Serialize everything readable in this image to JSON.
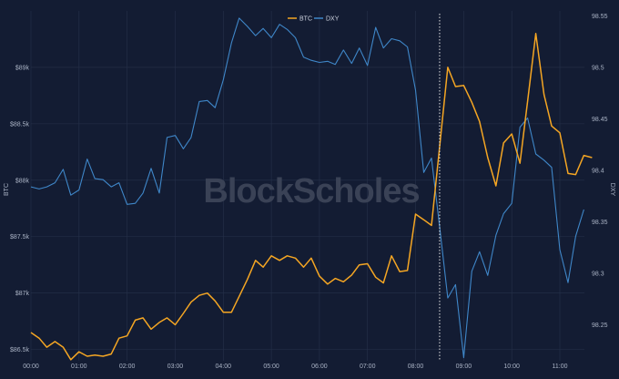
{
  "chart_data": {
    "type": "line",
    "watermark": "BlockScholes",
    "colors": {
      "background": "#131c33",
      "grid": "#26314a",
      "btc": "#f5a623",
      "dxy": "#3f87c9",
      "marker": "#e6e6e6"
    },
    "legend": {
      "position": "top-center",
      "items": [
        "BTC",
        "DXY"
      ]
    },
    "x_axis": {
      "ticks": [
        "00:00",
        "01:00",
        "02:00",
        "03:00",
        "04:00",
        "05:00",
        "06:00",
        "07:00",
        "08:00",
        "09:00",
        "10:00",
        "11:00"
      ],
      "range_hours": [
        0,
        11.5
      ]
    },
    "y_left": {
      "label": "BTC",
      "range": [
        86400,
        89500
      ],
      "ticks": [
        86500,
        87000,
        87500,
        88000,
        88500,
        89000
      ],
      "tick_labels": [
        "$86.5k",
        "$87k",
        "$87.5k",
        "$88k",
        "$88.5k",
        "$89k"
      ]
    },
    "y_right": {
      "label": "DXY",
      "range": [
        98.215,
        98.555
      ],
      "ticks": [
        98.25,
        98.3,
        98.35,
        98.4,
        98.45,
        98.5,
        98.55
      ],
      "tick_labels": [
        "98.25",
        "98.3",
        "98.35",
        "98.4",
        "98.45",
        "98.5",
        "98.55"
      ]
    },
    "event_marker_hour": 8.5,
    "series": [
      {
        "name": "BTC",
        "axis": "left",
        "points": [
          [
            0.0,
            86650
          ],
          [
            0.17,
            86600
          ],
          [
            0.33,
            86520
          ],
          [
            0.5,
            86570
          ],
          [
            0.67,
            86520
          ],
          [
            0.83,
            86410
          ],
          [
            1.0,
            86480
          ],
          [
            1.17,
            86440
          ],
          [
            1.33,
            86450
          ],
          [
            1.5,
            86440
          ],
          [
            1.67,
            86460
          ],
          [
            1.83,
            86600
          ],
          [
            2.0,
            86620
          ],
          [
            2.17,
            86760
          ],
          [
            2.33,
            86780
          ],
          [
            2.5,
            86680
          ],
          [
            2.67,
            86740
          ],
          [
            2.83,
            86780
          ],
          [
            3.0,
            86720
          ],
          [
            3.17,
            86820
          ],
          [
            3.33,
            86920
          ],
          [
            3.5,
            86980
          ],
          [
            3.67,
            87000
          ],
          [
            3.83,
            86930
          ],
          [
            4.0,
            86830
          ],
          [
            4.17,
            86830
          ],
          [
            4.33,
            86970
          ],
          [
            4.5,
            87120
          ],
          [
            4.67,
            87290
          ],
          [
            4.83,
            87230
          ],
          [
            5.0,
            87330
          ],
          [
            5.17,
            87290
          ],
          [
            5.33,
            87330
          ],
          [
            5.5,
            87310
          ],
          [
            5.67,
            87230
          ],
          [
            5.83,
            87310
          ],
          [
            6.0,
            87150
          ],
          [
            6.17,
            87080
          ],
          [
            6.33,
            87130
          ],
          [
            6.5,
            87100
          ],
          [
            6.67,
            87160
          ],
          [
            6.83,
            87250
          ],
          [
            7.0,
            87260
          ],
          [
            7.17,
            87140
          ],
          [
            7.33,
            87090
          ],
          [
            7.5,
            87330
          ],
          [
            7.67,
            87190
          ],
          [
            7.83,
            87200
          ],
          [
            8.0,
            87700
          ],
          [
            8.17,
            87650
          ],
          [
            8.33,
            87600
          ],
          [
            8.5,
            88300
          ],
          [
            8.67,
            89000
          ],
          [
            8.83,
            88830
          ],
          [
            9.0,
            88840
          ],
          [
            9.17,
            88690
          ],
          [
            9.33,
            88520
          ],
          [
            9.5,
            88200
          ],
          [
            9.67,
            87950
          ],
          [
            9.83,
            88330
          ],
          [
            10.0,
            88410
          ],
          [
            10.17,
            88150
          ],
          [
            10.33,
            88700
          ],
          [
            10.5,
            89300
          ],
          [
            10.67,
            88760
          ],
          [
            10.83,
            88480
          ],
          [
            11.0,
            88420
          ],
          [
            11.17,
            88060
          ],
          [
            11.33,
            88050
          ],
          [
            11.5,
            88220
          ],
          [
            11.67,
            88200
          ]
        ]
      },
      {
        "name": "DXY",
        "axis": "right",
        "points": [
          [
            0.0,
            98.384
          ],
          [
            0.17,
            98.382
          ],
          [
            0.33,
            98.384
          ],
          [
            0.5,
            98.388
          ],
          [
            0.67,
            98.401
          ],
          [
            0.83,
            98.376
          ],
          [
            1.0,
            98.381
          ],
          [
            1.17,
            98.411
          ],
          [
            1.33,
            98.392
          ],
          [
            1.5,
            98.391
          ],
          [
            1.67,
            98.384
          ],
          [
            1.83,
            98.388
          ],
          [
            2.0,
            98.367
          ],
          [
            2.17,
            98.368
          ],
          [
            2.33,
            98.378
          ],
          [
            2.5,
            98.402
          ],
          [
            2.67,
            98.378
          ],
          [
            2.83,
            98.432
          ],
          [
            3.0,
            98.434
          ],
          [
            3.17,
            98.421
          ],
          [
            3.33,
            98.432
          ],
          [
            3.5,
            98.467
          ],
          [
            3.67,
            98.468
          ],
          [
            3.83,
            98.461
          ],
          [
            4.0,
            98.488
          ],
          [
            4.17,
            98.524
          ],
          [
            4.33,
            98.548
          ],
          [
            4.5,
            98.54
          ],
          [
            4.67,
            98.531
          ],
          [
            4.83,
            98.538
          ],
          [
            5.0,
            98.529
          ],
          [
            5.17,
            98.542
          ],
          [
            5.33,
            98.537
          ],
          [
            5.5,
            98.529
          ],
          [
            5.67,
            98.51
          ],
          [
            5.83,
            98.507
          ],
          [
            6.0,
            98.505
          ],
          [
            6.17,
            98.506
          ],
          [
            6.33,
            98.503
          ],
          [
            6.5,
            98.517
          ],
          [
            6.67,
            98.504
          ],
          [
            6.83,
            98.519
          ],
          [
            7.0,
            98.502
          ],
          [
            7.17,
            98.539
          ],
          [
            7.33,
            98.519
          ],
          [
            7.5,
            98.528
          ],
          [
            7.67,
            98.526
          ],
          [
            7.83,
            98.52
          ],
          [
            8.0,
            98.478
          ],
          [
            8.17,
            98.398
          ],
          [
            8.33,
            98.412
          ],
          [
            8.5,
            98.345
          ],
          [
            8.67,
            98.276
          ],
          [
            8.83,
            98.289
          ],
          [
            9.0,
            98.218
          ],
          [
            9.17,
            98.302
          ],
          [
            9.33,
            98.321
          ],
          [
            9.5,
            98.298
          ],
          [
            9.67,
            98.337
          ],
          [
            9.83,
            98.358
          ],
          [
            10.0,
            98.368
          ],
          [
            10.17,
            98.442
          ],
          [
            10.33,
            98.451
          ],
          [
            10.5,
            98.416
          ],
          [
            10.67,
            98.41
          ],
          [
            10.83,
            98.403
          ],
          [
            11.0,
            98.323
          ],
          [
            11.17,
            98.291
          ],
          [
            11.33,
            98.336
          ],
          [
            11.5,
            98.362
          ]
        ]
      }
    ]
  }
}
